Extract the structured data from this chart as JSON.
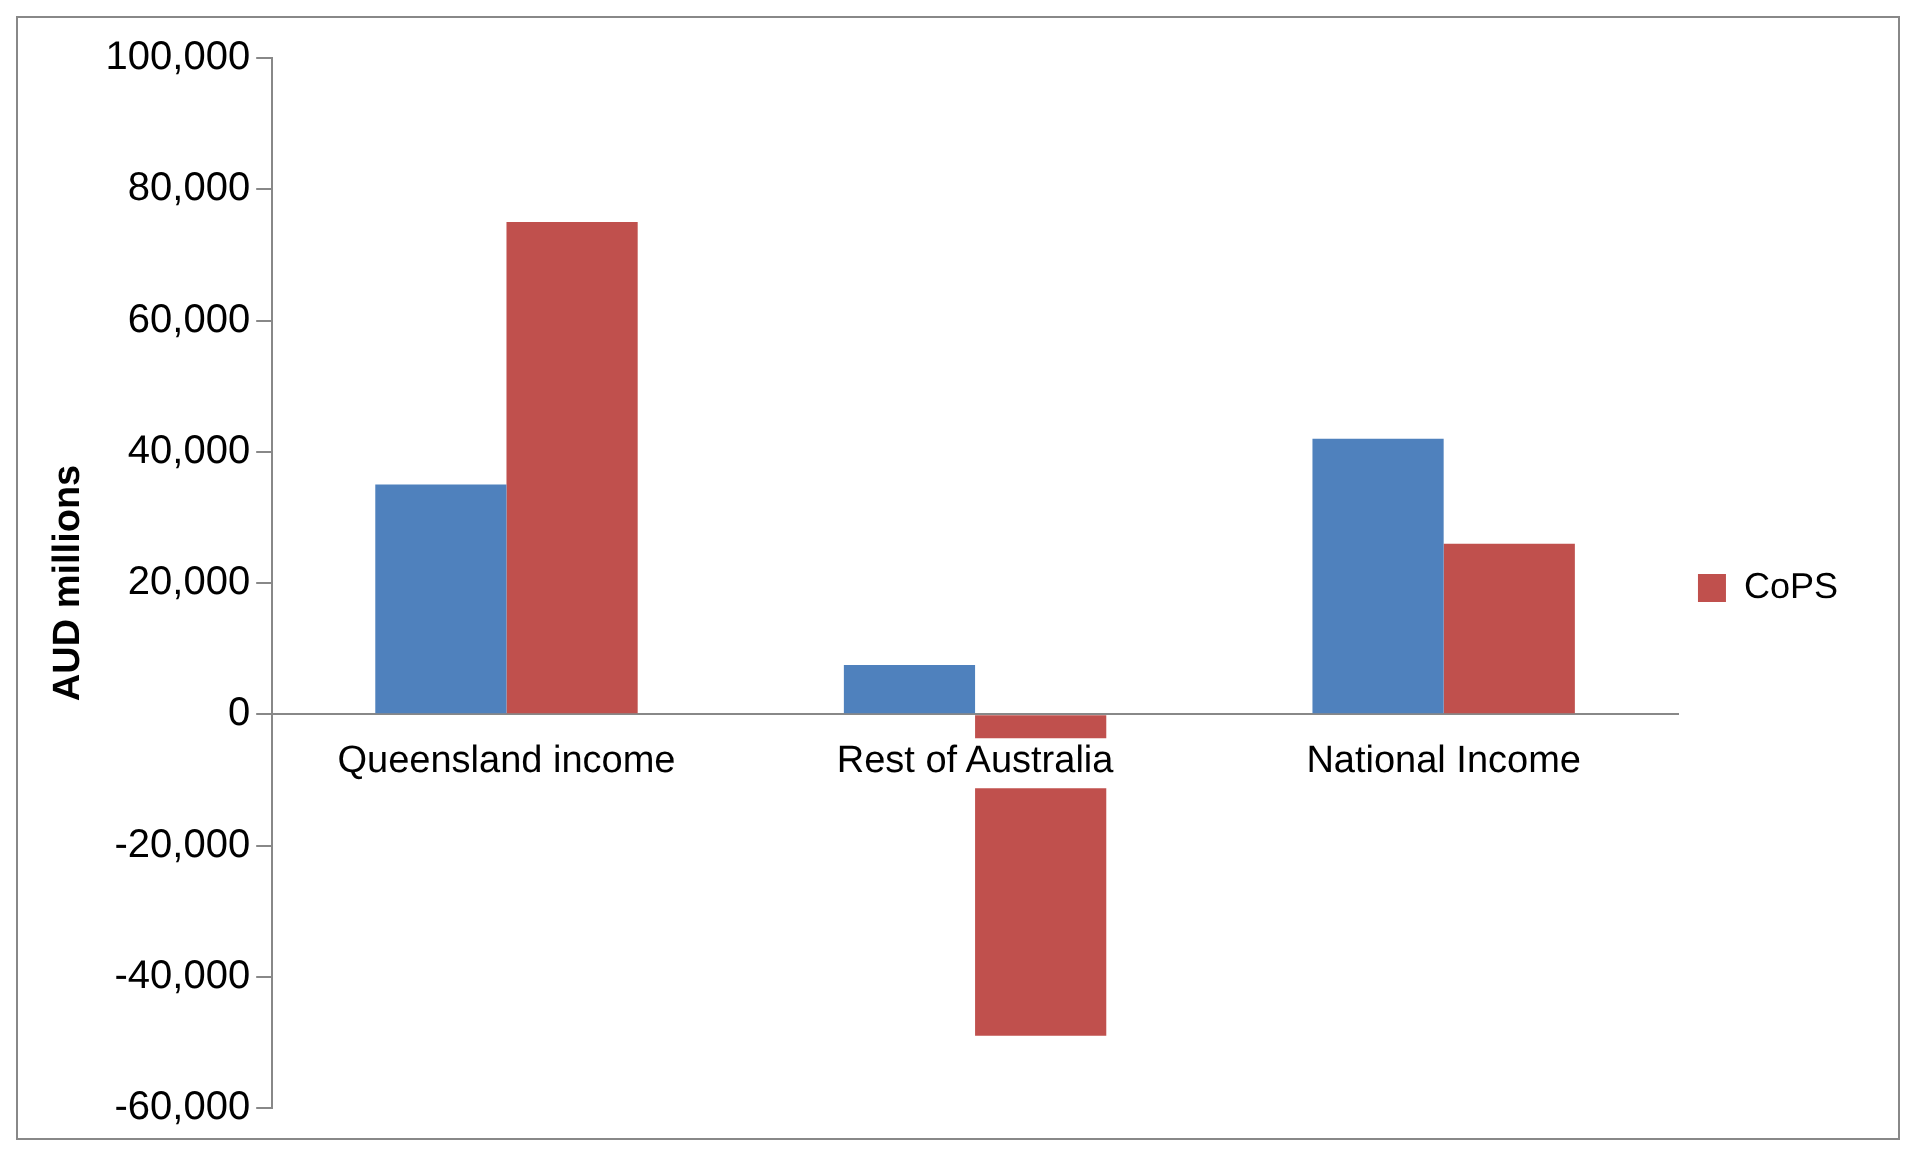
{
  "chart_data": {
    "type": "bar",
    "ylabel": "AUD millions",
    "categories": [
      "Queensland income",
      "Rest of Australia",
      "National Income"
    ],
    "series": [
      {
        "color": "#4f81bd",
        "values": [
          35000,
          7500,
          42000
        ]
      },
      {
        "name": "CoPS",
        "color": "#c0504d",
        "values": [
          75000,
          -49000,
          26000
        ]
      }
    ],
    "ylim": [
      -60000,
      100000
    ],
    "yticks": [
      {
        "value": -60000,
        "label": "-60,000"
      },
      {
        "value": -40000,
        "label": "-40,000"
      },
      {
        "value": -20000,
        "label": "-20,000"
      },
      0,
      {
        "value": 20000,
        "label": "20,000"
      },
      {
        "value": 40000,
        "label": "40,000"
      },
      {
        "value": 60000,
        "label": "60,000"
      },
      {
        "value": 80000,
        "label": "80,000"
      },
      {
        "value": 100000,
        "label": "100,000"
      }
    ],
    "grid": false,
    "legend": "right"
  }
}
